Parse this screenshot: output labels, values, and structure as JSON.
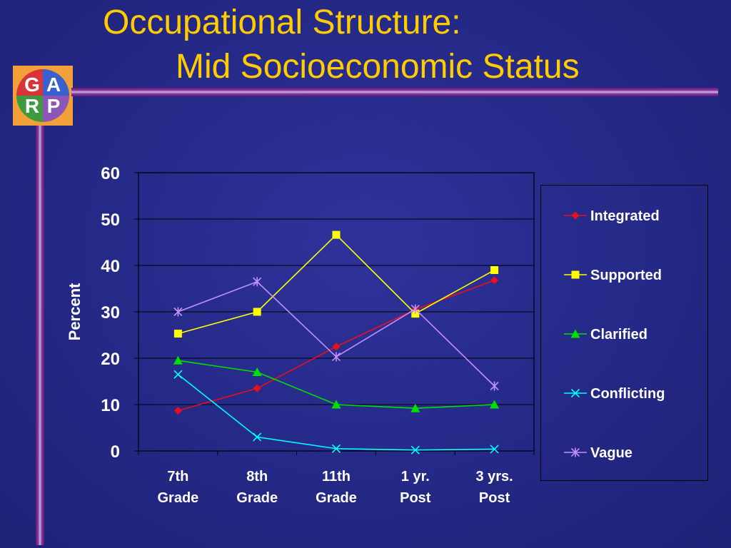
{
  "title": {
    "line1": "Occupational Structure:",
    "line2": "Mid Socioeconomic Status"
  },
  "logo": {
    "letters": [
      "G",
      "A",
      "R",
      "P"
    ],
    "colors": {
      "frame": "#f2a13a",
      "red": "#d8343a",
      "blue": "#3a5fcf",
      "green": "#3d9b3d",
      "purple": "#8b56b8"
    }
  },
  "chart_data": {
    "type": "line",
    "ylabel": "Percent",
    "ylim": [
      0,
      60
    ],
    "yticks": [
      0,
      10,
      20,
      30,
      40,
      50,
      60
    ],
    "grid": true,
    "legend_position": "right",
    "categories": [
      [
        "7th",
        "Grade"
      ],
      [
        "8th",
        "Grade"
      ],
      [
        "11th",
        "Grade"
      ],
      [
        "1 yr.",
        "Post"
      ],
      [
        "3 yrs.",
        "Post"
      ]
    ],
    "series": [
      {
        "name": "Integrated",
        "color": "#e8101a",
        "marker": "diamond",
        "values": [
          8.7,
          13.5,
          22.5,
          30.5,
          36.8
        ]
      },
      {
        "name": "Supported",
        "color": "#ffff00",
        "marker": "square",
        "values": [
          25.3,
          30.0,
          46.6,
          29.6,
          39.0
        ]
      },
      {
        "name": "Clarified",
        "color": "#00e000",
        "marker": "triangle",
        "values": [
          19.5,
          17.0,
          10.0,
          9.2,
          10.0
        ]
      },
      {
        "name": "Conflicting",
        "color": "#00ffff",
        "marker": "x",
        "values": [
          16.5,
          3.0,
          0.5,
          0.2,
          0.4
        ]
      },
      {
        "name": "Vague",
        "color": "#c090ff",
        "marker": "star",
        "values": [
          30.0,
          36.5,
          20.3,
          30.6,
          14.0
        ]
      }
    ]
  }
}
